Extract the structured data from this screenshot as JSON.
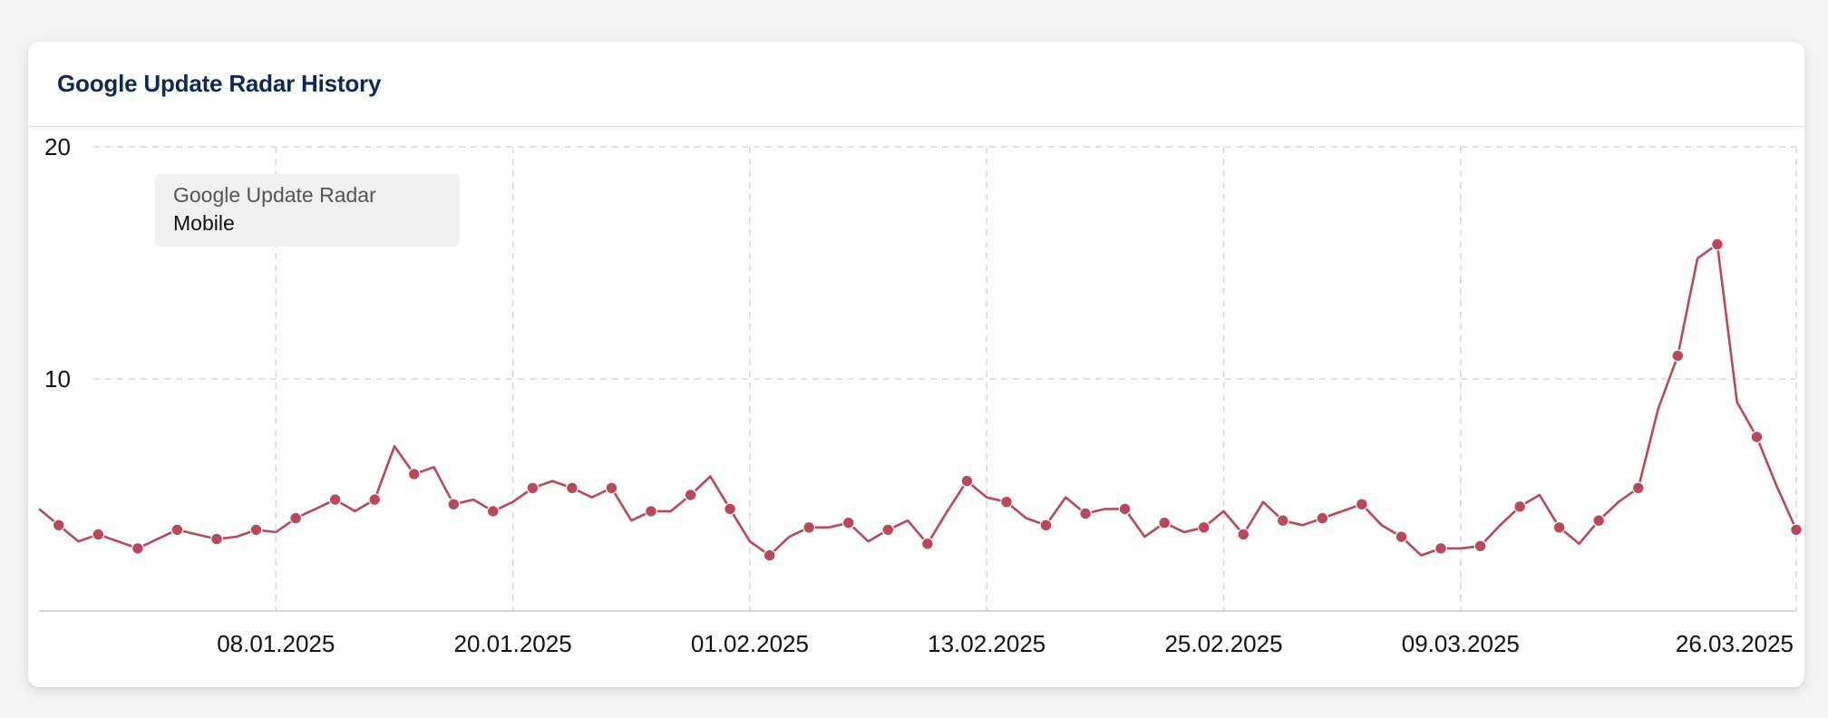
{
  "card": {
    "title": "Google Update Radar History"
  },
  "legend": {
    "line1": "Google Update Radar",
    "line2": "Mobile"
  },
  "colors": {
    "series": "#b8485a",
    "grid": "#d7d7d7",
    "axis": "#c9c9c9",
    "legend_bg": "#f1f1f1"
  },
  "chart_data": {
    "type": "line",
    "title": "Google Update Radar History",
    "xlabel": "",
    "ylabel": "",
    "ylim": [
      0,
      20
    ],
    "y_ticks": [
      10,
      20
    ],
    "x_tick_labels": [
      "08.01.2025",
      "20.01.2025",
      "01.02.2025",
      "13.02.2025",
      "25.02.2025",
      "09.03.2025",
      "26.03.2025"
    ],
    "x_start": "2024-12-27",
    "x_end": "2025-03-26",
    "grid": true,
    "legend": "top-left",
    "series": [
      {
        "name": "Google Update Radar Mobile",
        "x": [
          "2024-12-27",
          "2024-12-28",
          "2024-12-29",
          "2024-12-30",
          "2024-12-31",
          "2025-01-01",
          "2025-01-02",
          "2025-01-03",
          "2025-01-04",
          "2025-01-05",
          "2025-01-06",
          "2025-01-07",
          "2025-01-08",
          "2025-01-09",
          "2025-01-10",
          "2025-01-11",
          "2025-01-12",
          "2025-01-13",
          "2025-01-14",
          "2025-01-15",
          "2025-01-16",
          "2025-01-17",
          "2025-01-18",
          "2025-01-19",
          "2025-01-20",
          "2025-01-21",
          "2025-01-22",
          "2025-01-23",
          "2025-01-24",
          "2025-01-25",
          "2025-01-26",
          "2025-01-27",
          "2025-01-28",
          "2025-01-29",
          "2025-01-30",
          "2025-01-31",
          "2025-02-01",
          "2025-02-02",
          "2025-02-03",
          "2025-02-04",
          "2025-02-05",
          "2025-02-06",
          "2025-02-07",
          "2025-02-08",
          "2025-02-09",
          "2025-02-10",
          "2025-02-11",
          "2025-02-12",
          "2025-02-13",
          "2025-02-14",
          "2025-02-15",
          "2025-02-16",
          "2025-02-17",
          "2025-02-18",
          "2025-02-19",
          "2025-02-20",
          "2025-02-21",
          "2025-02-22",
          "2025-02-23",
          "2025-02-24",
          "2025-02-25",
          "2025-02-26",
          "2025-02-27",
          "2025-02-28",
          "2025-03-01",
          "2025-03-02",
          "2025-03-03",
          "2025-03-04",
          "2025-03-05",
          "2025-03-06",
          "2025-03-07",
          "2025-03-08",
          "2025-03-09",
          "2025-03-10",
          "2025-03-11",
          "2025-03-12",
          "2025-03-13",
          "2025-03-14",
          "2025-03-15",
          "2025-03-16",
          "2025-03-17",
          "2025-03-18",
          "2025-03-19",
          "2025-03-20",
          "2025-03-21",
          "2025-03-22",
          "2025-03-23",
          "2025-03-24",
          "2025-03-25",
          "2025-03-26"
        ],
        "values": [
          4.4,
          3.7,
          3.0,
          3.3,
          3.0,
          2.7,
          3.1,
          3.5,
          3.3,
          3.1,
          3.2,
          3.5,
          3.4,
          4.0,
          4.4,
          4.8,
          4.3,
          4.8,
          7.1,
          5.9,
          6.2,
          4.6,
          4.8,
          4.3,
          4.7,
          5.3,
          5.6,
          5.3,
          4.9,
          5.3,
          3.9,
          4.3,
          4.3,
          5.0,
          5.8,
          4.4,
          3.0,
          2.4,
          3.2,
          3.6,
          3.6,
          3.8,
          3.0,
          3.5,
          3.9,
          2.9,
          4.3,
          5.6,
          4.9,
          4.7,
          4.0,
          3.7,
          4.9,
          4.2,
          4.4,
          4.4,
          3.2,
          3.8,
          3.4,
          3.6,
          4.3,
          3.3,
          4.7,
          3.9,
          3.7,
          4.0,
          4.3,
          4.6,
          3.7,
          3.2,
          2.4,
          2.7,
          2.7,
          2.8,
          3.7,
          4.5,
          5.0,
          3.6,
          2.9,
          3.9,
          4.7,
          5.3,
          8.7,
          11.0,
          15.2,
          15.8,
          9.0,
          7.5,
          5.4,
          3.5
        ]
      }
    ]
  }
}
